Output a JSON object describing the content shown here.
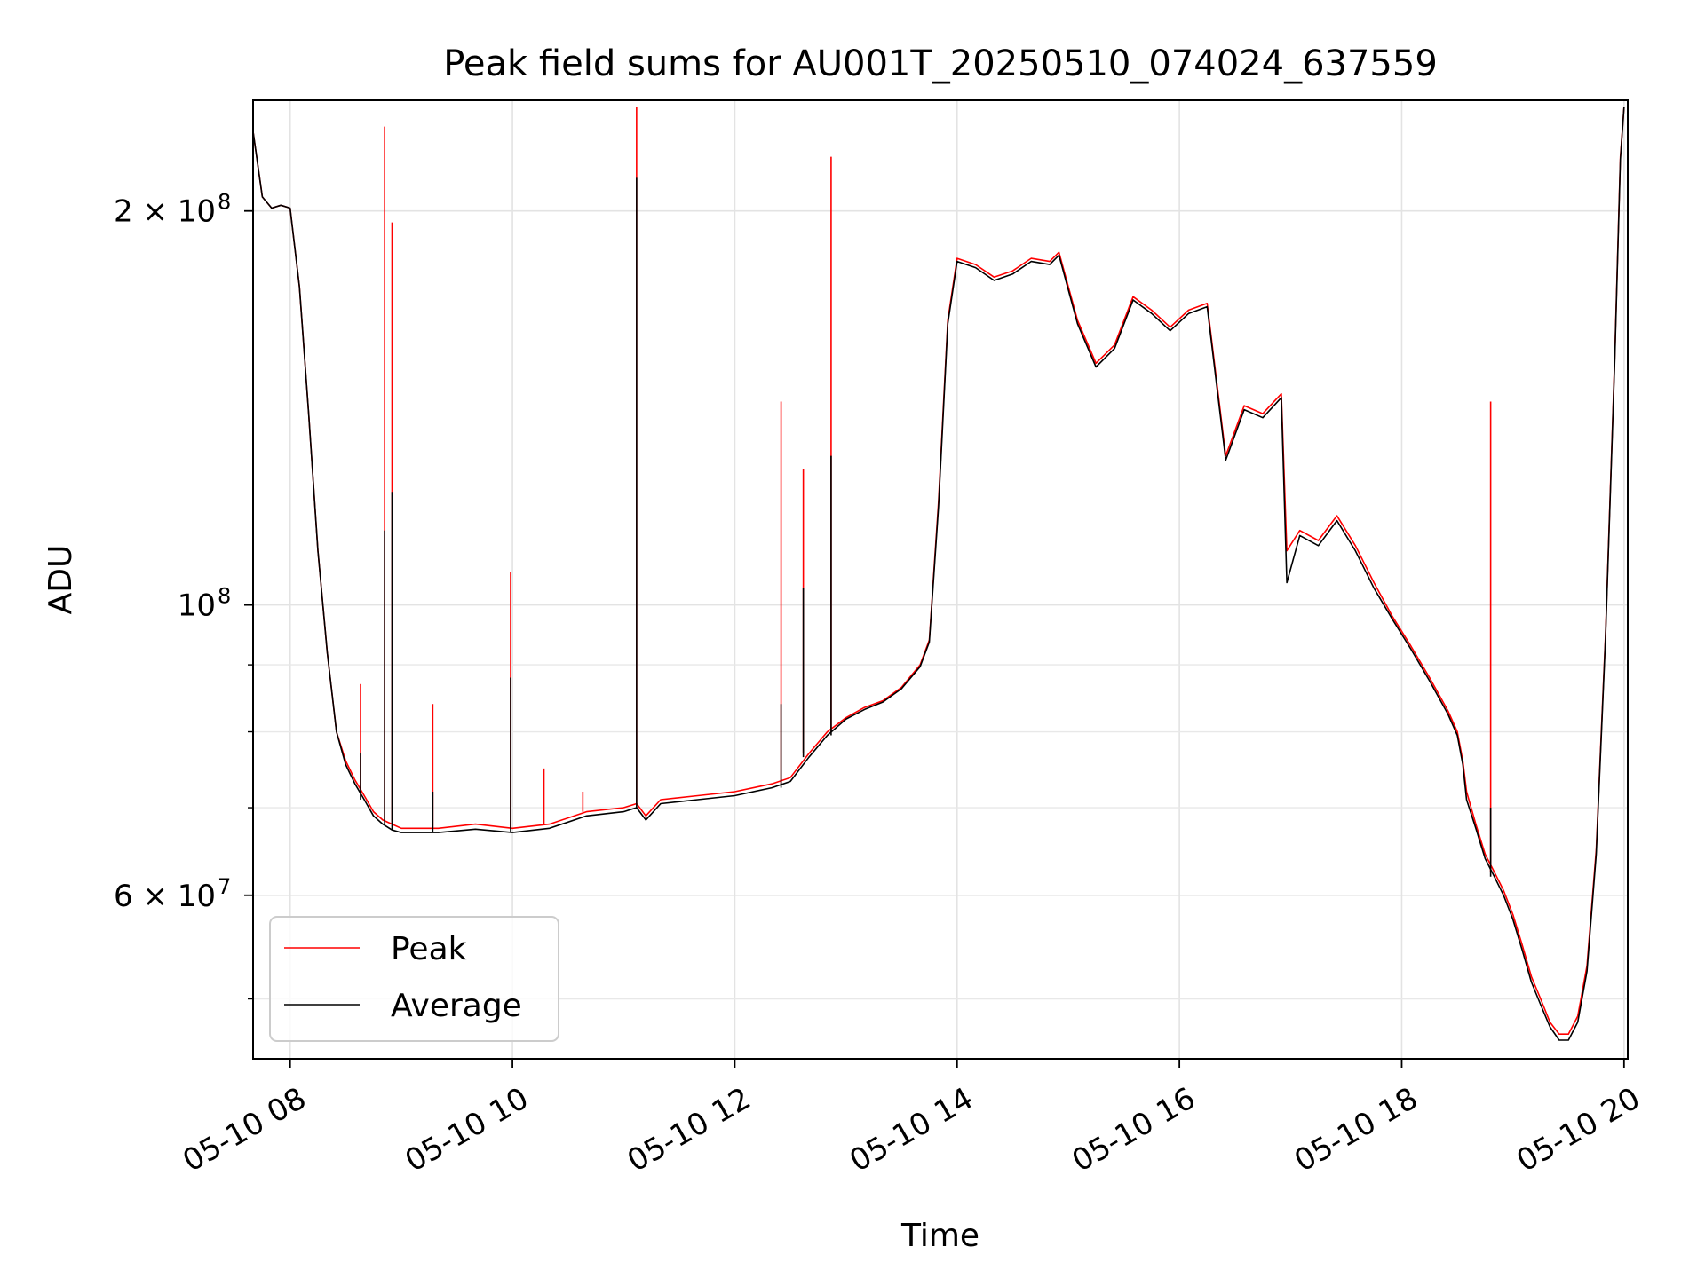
{
  "chart_data": {
    "type": "line",
    "title": "Peak field sums for AU001T_20250510_074024_637559",
    "xlabel": "Time",
    "ylabel": "ADU",
    "yscale": "log",
    "ylim": [
      45000000,
      243000000
    ],
    "xlim": [
      "2025-05-10 07:40",
      "2025-05-10 20:02"
    ],
    "grid": true,
    "legend_position": "lower-left",
    "x_ticks": [
      {
        "x": "2025-05-10 08:00",
        "label": "05-10 08"
      },
      {
        "x": "2025-05-10 10:00",
        "label": "05-10 10"
      },
      {
        "x": "2025-05-10 12:00",
        "label": "05-10 12"
      },
      {
        "x": "2025-05-10 14:00",
        "label": "05-10 14"
      },
      {
        "x": "2025-05-10 16:00",
        "label": "05-10 16"
      },
      {
        "x": "2025-05-10 18:00",
        "label": "05-10 18"
      },
      {
        "x": "2025-05-10 20:00",
        "label": "05-10 20"
      }
    ],
    "y_ticks": [
      {
        "y": 200000000,
        "base": "2 × 10",
        "exp": "8"
      },
      {
        "y": 100000000,
        "base": "10",
        "exp": "8"
      },
      {
        "y": 60000000,
        "base": "6 × 10",
        "exp": "7"
      }
    ],
    "y_minor_ticks": [
      50000000,
      70000000,
      80000000,
      90000000
    ],
    "series": [
      {
        "name": "Peak",
        "color": "#ff0000",
        "points": [
          [
            "2025-05-10 07:40",
            230000000
          ],
          [
            "2025-05-10 07:45",
            205000000
          ],
          [
            "2025-05-10 07:50",
            201000000
          ],
          [
            "2025-05-10 07:55",
            202000000
          ],
          [
            "2025-05-10 08:00",
            201000000
          ],
          [
            "2025-05-10 08:05",
            175000000
          ],
          [
            "2025-05-10 08:10",
            140000000
          ],
          [
            "2025-05-10 08:15",
            110000000
          ],
          [
            "2025-05-10 08:20",
            92000000
          ],
          [
            "2025-05-10 08:25",
            80000000
          ],
          [
            "2025-05-10 08:30",
            76000000
          ],
          [
            "2025-05-10 08:35",
            73500000
          ],
          [
            "2025-05-10 08:40",
            71500000
          ],
          [
            "2025-05-10 08:45",
            69500000
          ],
          [
            "2025-05-10 08:50",
            68500000
          ],
          [
            "2025-05-10 08:55",
            68000000
          ],
          [
            "2025-05-10 09:00",
            67500000
          ],
          [
            "2025-05-10 09:20",
            67500000
          ],
          [
            "2025-05-10 09:40",
            68000000
          ],
          [
            "2025-05-10 10:00",
            67500000
          ],
          [
            "2025-05-10 10:20",
            68000000
          ],
          [
            "2025-05-10 10:40",
            69500000
          ],
          [
            "2025-05-10 11:00",
            70000000
          ],
          [
            "2025-05-10 11:07",
            70500000
          ],
          [
            "2025-05-10 11:12",
            69000000
          ],
          [
            "2025-05-10 11:20",
            71000000
          ],
          [
            "2025-05-10 11:40",
            71500000
          ],
          [
            "2025-05-10 12:00",
            72000000
          ],
          [
            "2025-05-10 12:20",
            73000000
          ],
          [
            "2025-05-10 12:30",
            73800000
          ],
          [
            "2025-05-10 12:40",
            77000000
          ],
          [
            "2025-05-10 12:50",
            80000000
          ],
          [
            "2025-05-10 13:00",
            82000000
          ],
          [
            "2025-05-10 13:10",
            83500000
          ],
          [
            "2025-05-10 13:20",
            84500000
          ],
          [
            "2025-05-10 13:30",
            86500000
          ],
          [
            "2025-05-10 13:40",
            90000000
          ],
          [
            "2025-05-10 13:45",
            94000000
          ],
          [
            "2025-05-10 13:50",
            120000000
          ],
          [
            "2025-05-10 13:55",
            165000000
          ],
          [
            "2025-05-10 14:00",
            184000000
          ],
          [
            "2025-05-10 14:10",
            182000000
          ],
          [
            "2025-05-10 14:20",
            178000000
          ],
          [
            "2025-05-10 14:30",
            180000000
          ],
          [
            "2025-05-10 14:40",
            184000000
          ],
          [
            "2025-05-10 14:50",
            183000000
          ],
          [
            "2025-05-10 14:55",
            186000000
          ],
          [
            "2025-05-10 15:05",
            165000000
          ],
          [
            "2025-05-10 15:15",
            153000000
          ],
          [
            "2025-05-10 15:25",
            158000000
          ],
          [
            "2025-05-10 15:35",
            172000000
          ],
          [
            "2025-05-10 15:45",
            168000000
          ],
          [
            "2025-05-10 15:55",
            163000000
          ],
          [
            "2025-05-10 16:05",
            168000000
          ],
          [
            "2025-05-10 16:15",
            170000000
          ],
          [
            "2025-05-10 16:25",
            130000000
          ],
          [
            "2025-05-10 16:35",
            142000000
          ],
          [
            "2025-05-10 16:45",
            140000000
          ],
          [
            "2025-05-10 16:55",
            145000000
          ],
          [
            "2025-05-10 16:58",
            110000000
          ],
          [
            "2025-05-10 17:05",
            114000000
          ],
          [
            "2025-05-10 17:15",
            112000000
          ],
          [
            "2025-05-10 17:25",
            117000000
          ],
          [
            "2025-05-10 17:35",
            111000000
          ],
          [
            "2025-05-10 17:45",
            104000000
          ],
          [
            "2025-05-10 17:55",
            98000000
          ],
          [
            "2025-05-10 18:05",
            93000000
          ],
          [
            "2025-05-10 18:15",
            88000000
          ],
          [
            "2025-05-10 18:25",
            83000000
          ],
          [
            "2025-05-10 18:30",
            80000000
          ],
          [
            "2025-05-10 18:33",
            76000000
          ],
          [
            "2025-05-10 18:35",
            72000000
          ],
          [
            "2025-05-10 18:40",
            68000000
          ],
          [
            "2025-05-10 18:45",
            64500000
          ],
          [
            "2025-05-10 18:50",
            62500000
          ],
          [
            "2025-05-10 18:55",
            60500000
          ],
          [
            "2025-05-10 19:00",
            58000000
          ],
          [
            "2025-05-10 19:05",
            55000000
          ],
          [
            "2025-05-10 19:10",
            52000000
          ],
          [
            "2025-05-10 19:15",
            50000000
          ],
          [
            "2025-05-10 19:20",
            48000000
          ],
          [
            "2025-05-10 19:25",
            47000000
          ],
          [
            "2025-05-10 19:30",
            47000000
          ],
          [
            "2025-05-10 19:35",
            48500000
          ],
          [
            "2025-05-10 19:40",
            53000000
          ],
          [
            "2025-05-10 19:45",
            65000000
          ],
          [
            "2025-05-10 19:50",
            95000000
          ],
          [
            "2025-05-10 19:55",
            155000000
          ],
          [
            "2025-05-10 19:58",
            220000000
          ],
          [
            "2025-05-10 20:00",
            240000000
          ]
        ],
        "spikes": [
          [
            "2025-05-10 08:38",
            87000000
          ],
          [
            "2025-05-10 08:51",
            232000000
          ],
          [
            "2025-05-10 08:55",
            196000000
          ],
          [
            "2025-05-10 09:17",
            84000000
          ],
          [
            "2025-05-10 09:59",
            106000000
          ],
          [
            "2025-05-10 10:17",
            75000000
          ],
          [
            "2025-05-10 10:38",
            72000000
          ],
          [
            "2025-05-10 11:07",
            240000000
          ],
          [
            "2025-05-10 12:25",
            143000000
          ],
          [
            "2025-05-10 12:37",
            127000000
          ],
          [
            "2025-05-10 12:52",
            220000000
          ],
          [
            "2025-05-10 18:48",
            143000000
          ]
        ]
      },
      {
        "name": "Average",
        "color": "#000000",
        "points": [
          [
            "2025-05-10 07:40",
            230000000
          ],
          [
            "2025-05-10 07:45",
            205000000
          ],
          [
            "2025-05-10 07:50",
            201000000
          ],
          [
            "2025-05-10 07:55",
            202000000
          ],
          [
            "2025-05-10 08:00",
            201000000
          ],
          [
            "2025-05-10 08:05",
            175000000
          ],
          [
            "2025-05-10 08:10",
            140000000
          ],
          [
            "2025-05-10 08:15",
            110000000
          ],
          [
            "2025-05-10 08:20",
            92000000
          ],
          [
            "2025-05-10 08:25",
            80000000
          ],
          [
            "2025-05-10 08:30",
            75500000
          ],
          [
            "2025-05-10 08:35",
            73000000
          ],
          [
            "2025-05-10 08:40",
            71000000
          ],
          [
            "2025-05-10 08:45",
            69000000
          ],
          [
            "2025-05-10 08:50",
            68000000
          ],
          [
            "2025-05-10 08:55",
            67300000
          ],
          [
            "2025-05-10 09:00",
            67000000
          ],
          [
            "2025-05-10 09:20",
            67000000
          ],
          [
            "2025-05-10 09:40",
            67400000
          ],
          [
            "2025-05-10 10:00",
            67000000
          ],
          [
            "2025-05-10 10:20",
            67500000
          ],
          [
            "2025-05-10 10:40",
            69000000
          ],
          [
            "2025-05-10 11:00",
            69500000
          ],
          [
            "2025-05-10 11:07",
            70000000
          ],
          [
            "2025-05-10 11:12",
            68500000
          ],
          [
            "2025-05-10 11:20",
            70500000
          ],
          [
            "2025-05-10 11:40",
            71000000
          ],
          [
            "2025-05-10 12:00",
            71500000
          ],
          [
            "2025-05-10 12:20",
            72500000
          ],
          [
            "2025-05-10 12:30",
            73300000
          ],
          [
            "2025-05-10 12:40",
            76500000
          ],
          [
            "2025-05-10 12:50",
            79500000
          ],
          [
            "2025-05-10 13:00",
            81800000
          ],
          [
            "2025-05-10 13:10",
            83200000
          ],
          [
            "2025-05-10 13:20",
            84300000
          ],
          [
            "2025-05-10 13:30",
            86300000
          ],
          [
            "2025-05-10 13:40",
            89700000
          ],
          [
            "2025-05-10 13:45",
            93700000
          ],
          [
            "2025-05-10 13:50",
            119000000
          ],
          [
            "2025-05-10 13:55",
            164000000
          ],
          [
            "2025-05-10 14:00",
            183000000
          ],
          [
            "2025-05-10 14:10",
            181000000
          ],
          [
            "2025-05-10 14:20",
            177000000
          ],
          [
            "2025-05-10 14:30",
            179000000
          ],
          [
            "2025-05-10 14:40",
            183000000
          ],
          [
            "2025-05-10 14:50",
            182000000
          ],
          [
            "2025-05-10 14:55",
            185000000
          ],
          [
            "2025-05-10 15:05",
            164000000
          ],
          [
            "2025-05-10 15:15",
            152000000
          ],
          [
            "2025-05-10 15:25",
            157000000
          ],
          [
            "2025-05-10 15:35",
            171000000
          ],
          [
            "2025-05-10 15:45",
            167000000
          ],
          [
            "2025-05-10 15:55",
            162000000
          ],
          [
            "2025-05-10 16:05",
            167000000
          ],
          [
            "2025-05-10 16:15",
            169000000
          ],
          [
            "2025-05-10 16:25",
            129000000
          ],
          [
            "2025-05-10 16:35",
            141000000
          ],
          [
            "2025-05-10 16:45",
            139000000
          ],
          [
            "2025-05-10 16:55",
            144000000
          ],
          [
            "2025-05-10 16:58",
            104000000
          ],
          [
            "2025-05-10 17:05",
            113000000
          ],
          [
            "2025-05-10 17:15",
            111000000
          ],
          [
            "2025-05-10 17:25",
            116000000
          ],
          [
            "2025-05-10 17:35",
            110000000
          ],
          [
            "2025-05-10 17:45",
            103000000
          ],
          [
            "2025-05-10 17:55",
            97500000
          ],
          [
            "2025-05-10 18:05",
            92500000
          ],
          [
            "2025-05-10 18:15",
            87500000
          ],
          [
            "2025-05-10 18:25",
            82500000
          ],
          [
            "2025-05-10 18:30",
            79500000
          ],
          [
            "2025-05-10 18:33",
            75500000
          ],
          [
            "2025-05-10 18:35",
            71000000
          ],
          [
            "2025-05-10 18:40",
            67500000
          ],
          [
            "2025-05-10 18:45",
            64000000
          ],
          [
            "2025-05-10 18:50",
            62000000
          ],
          [
            "2025-05-10 18:55",
            60000000
          ],
          [
            "2025-05-10 19:00",
            57500000
          ],
          [
            "2025-05-10 19:05",
            54500000
          ],
          [
            "2025-05-10 19:10",
            51500000
          ],
          [
            "2025-05-10 19:15",
            49500000
          ],
          [
            "2025-05-10 19:20",
            47600000
          ],
          [
            "2025-05-10 19:25",
            46500000
          ],
          [
            "2025-05-10 19:30",
            46500000
          ],
          [
            "2025-05-10 19:35",
            48000000
          ],
          [
            "2025-05-10 19:40",
            52500000
          ],
          [
            "2025-05-10 19:45",
            64500000
          ],
          [
            "2025-05-10 19:50",
            94500000
          ],
          [
            "2025-05-10 19:55",
            154000000
          ],
          [
            "2025-05-10 19:58",
            219000000
          ],
          [
            "2025-05-10 20:00",
            240000000
          ]
        ],
        "spikes": [
          [
            "2025-05-10 08:38",
            77000000
          ],
          [
            "2025-05-10 08:51",
            114000000
          ],
          [
            "2025-05-10 08:55",
            122000000
          ],
          [
            "2025-05-10 09:17",
            72000000
          ],
          [
            "2025-05-10 09:59",
            88000000
          ],
          [
            "2025-05-10 11:07",
            212000000
          ],
          [
            "2025-05-10 12:25",
            84000000
          ],
          [
            "2025-05-10 12:37",
            103000000
          ],
          [
            "2025-05-10 12:52",
            130000000
          ],
          [
            "2025-05-10 18:48",
            70000000
          ]
        ]
      }
    ]
  }
}
